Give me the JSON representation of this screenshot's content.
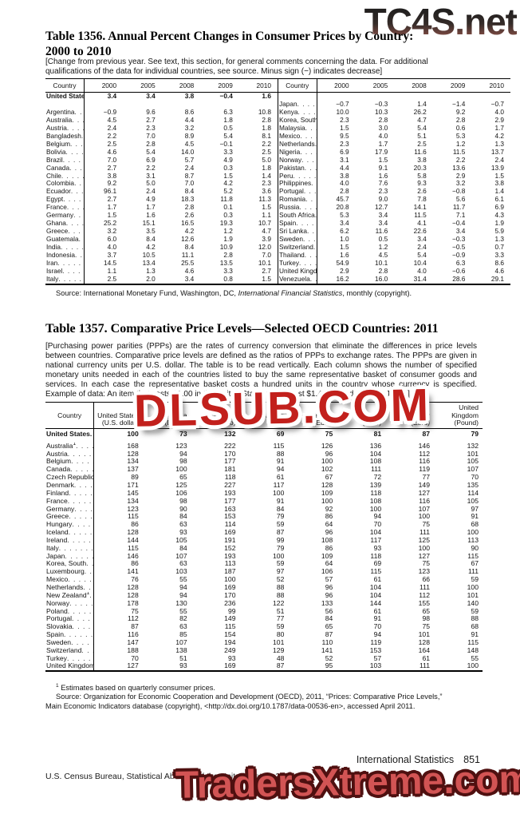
{
  "watermarks": {
    "top": "TC4S.net",
    "middle": "DLSUB.COM",
    "bottom": "TradersXtreme.com"
  },
  "table1356": {
    "title_line1": "Table 1356. Annual Percent Changes in Consumer Prices by Country:",
    "title_line2": "2000 to 2010",
    "note": "[Change from previous year. See text, this section, for general comments concerning the data. For additional qualifications of the data for individual countries, see source. Minus sign (−) indicates decrease]",
    "country_header": "Country",
    "years": [
      "2000",
      "2005",
      "2008",
      "2009",
      "2010"
    ],
    "rows": [
      {
        "lc": "United States",
        "lb": true,
        "lv": [
          "3.4",
          "3.4",
          "3.8",
          "−0.4",
          "1.6"
        ],
        "rc": null,
        "rv": null
      },
      {
        "lc": null,
        "lv": null,
        "rc": "Japan",
        "rv": [
          "−0.7",
          "−0.3",
          "1.4",
          "−1.4",
          "−0.7"
        ]
      },
      {
        "lc": "Argentina",
        "lv": [
          "−0.9",
          "9.6",
          "8.6",
          "6.3",
          "10.8"
        ],
        "rc": "Kenya",
        "rv": [
          "10.0",
          "10.3",
          "26.2",
          "9.2",
          "4.0"
        ]
      },
      {
        "lc": "Australia",
        "lv": [
          "4.5",
          "2.7",
          "4.4",
          "1.8",
          "2.8"
        ],
        "rc": "Korea, South",
        "rv": [
          "2.3",
          "2.8",
          "4.7",
          "2.8",
          "2.9"
        ]
      },
      {
        "lc": "Austria",
        "lv": [
          "2.4",
          "2.3",
          "3.2",
          "0.5",
          "1.8"
        ],
        "rc": "Malaysia",
        "rv": [
          "1.5",
          "3.0",
          "5.4",
          "0.6",
          "1.7"
        ]
      },
      {
        "lc": "Bangladesh",
        "lv": [
          "2.2",
          "7.0",
          "8.9",
          "5.4",
          "8.1"
        ],
        "rc": "Mexico",
        "rv": [
          "9.5",
          "4.0",
          "5.1",
          "5.3",
          "4.2"
        ]
      },
      {
        "lc": "Belgium",
        "lv": [
          "2.5",
          "2.8",
          "4.5",
          "−0.1",
          "2.2"
        ],
        "rc": "Netherlands",
        "rv": [
          "2.3",
          "1.7",
          "2.5",
          "1.2",
          "1.3"
        ]
      },
      {
        "lc": "Bolivia",
        "lv": [
          "4.6",
          "5.4",
          "14.0",
          "3.3",
          "2.5"
        ],
        "rc": "Nigeria",
        "rv": [
          "6.9",
          "17.9",
          "11.6",
          "11.5",
          "13.7"
        ]
      },
      {
        "lc": "Brazil",
        "lv": [
          "7.0",
          "6.9",
          "5.7",
          "4.9",
          "5.0"
        ],
        "rc": "Norway",
        "rv": [
          "3.1",
          "1.5",
          "3.8",
          "2.2",
          "2.4"
        ]
      },
      {
        "lc": "Canada",
        "lv": [
          "2.7",
          "2.2",
          "2.4",
          "0.3",
          "1.8"
        ],
        "rc": "Pakistan",
        "rv": [
          "4.4",
          "9.1",
          "20.3",
          "13.6",
          "13.9"
        ]
      },
      {
        "lc": "Chile",
        "lv": [
          "3.8",
          "3.1",
          "8.7",
          "1.5",
          "1.4"
        ],
        "rc": "Peru",
        "rv": [
          "3.8",
          "1.6",
          "5.8",
          "2.9",
          "1.5"
        ]
      },
      {
        "lc": "Colombia",
        "lv": [
          "9.2",
          "5.0",
          "7.0",
          "4.2",
          "2.3"
        ],
        "rc": "Philippines",
        "rv": [
          "4.0",
          "7.6",
          "9.3",
          "3.2",
          "3.8"
        ]
      },
      {
        "lc": "Ecuador",
        "lv": [
          "96.1",
          "2.4",
          "8.4",
          "5.2",
          "3.6"
        ],
        "rc": "Portugal",
        "rv": [
          "2.8",
          "2.3",
          "2.6",
          "−0.8",
          "1.4"
        ]
      },
      {
        "lc": "Egypt",
        "lv": [
          "2.7",
          "4.9",
          "18.3",
          "11.8",
          "11.3"
        ],
        "rc": "Romania",
        "rv": [
          "45.7",
          "9.0",
          "7.8",
          "5.6",
          "6.1"
        ]
      },
      {
        "lc": "France",
        "lv": [
          "1.7",
          "1.7",
          "2.8",
          "0.1",
          "1.5"
        ],
        "rc": "Russia",
        "rv": [
          "20.8",
          "12.7",
          "14.1",
          "11.7",
          "6.9"
        ]
      },
      {
        "lc": "Germany",
        "lv": [
          "1.5",
          "1.6",
          "2.6",
          "0.3",
          "1.1"
        ],
        "rc": "South Africa",
        "rv": [
          "5.3",
          "3.4",
          "11.5",
          "7.1",
          "4.3"
        ]
      },
      {
        "lc": "Ghana",
        "lv": [
          "25.2",
          "15.1",
          "16.5",
          "19.3",
          "10.7"
        ],
        "rc": "Spain",
        "rv": [
          "3.4",
          "3.4",
          "4.1",
          "−0.4",
          "1.9"
        ]
      },
      {
        "lc": "Greece",
        "lv": [
          "3.2",
          "3.5",
          "4.2",
          "1.2",
          "4.7"
        ],
        "rc": "Sri Lanka",
        "rv": [
          "6.2",
          "11.6",
          "22.6",
          "3.4",
          "5.9"
        ]
      },
      {
        "lc": "Guatemala",
        "lv": [
          "6.0",
          "8.4",
          "12.6",
          "1.9",
          "3.9"
        ],
        "rc": "Sweden",
        "rv": [
          "1.0",
          "0.5",
          "3.4",
          "−0.3",
          "1.3"
        ]
      },
      {
        "lc": "India",
        "lv": [
          "4.0",
          "4.2",
          "8.4",
          "10.9",
          "12.0"
        ],
        "rc": "Switzerland",
        "rv": [
          "1.5",
          "1.2",
          "2.4",
          "−0.5",
          "0.7"
        ]
      },
      {
        "lc": "Indonesia",
        "lv": [
          "3.7",
          "10.5",
          "11.1",
          "2.8",
          "7.0"
        ],
        "rc": "Thailand",
        "rv": [
          "1.6",
          "4.5",
          "5.4",
          "−0.9",
          "3.3"
        ]
      },
      {
        "lc": "Iran",
        "lv": [
          "14.5",
          "13.4",
          "25.5",
          "13.5",
          "10.1"
        ],
        "rc": "Turkey",
        "rv": [
          "54.9",
          "10.1",
          "10.4",
          "6.3",
          "8.6"
        ]
      },
      {
        "lc": "Israel",
        "lv": [
          "1.1",
          "1.3",
          "4.6",
          "3.3",
          "2.7"
        ],
        "rc": "United Kingdom",
        "rv": [
          "2.9",
          "2.8",
          "4.0",
          "−0.6",
          "4.6"
        ]
      },
      {
        "lc": "Italy",
        "lv": [
          "2.5",
          "2.0",
          "3.4",
          "0.8",
          "1.5"
        ],
        "rc": "Venezuela",
        "rv": [
          "16.2",
          "16.0",
          "31.4",
          "28.6",
          "29.1"
        ]
      }
    ],
    "source_prefix": "Source: International Monetary Fund, Washington, DC, ",
    "source_italic": "International Financial Statistics",
    "source_suffix": ", monthly (copyright)."
  },
  "table1357": {
    "title": "Table 1357. Comparative Price Levels—Selected OECD Countries: 2011",
    "note": "[Purchasing power parities (PPPs) are the rates of currency conversion that eliminate the differences in price levels between countries. Comparative price levels are defined as the ratios of PPPs to exchange rates. The PPPs are given in national currency units per U.S. dollar. The table is to be read vertically. Each column shows the number of specified monetary units needed in each of the countries listed to buy the same representative basket of consumer goods and services. In each case the representative basket costs a hundred units in the country whose currency is specified. Example of data: An item that costs $1.00 in the United States would cost $1.46 (U.S. dollars) in Japan]",
    "country_header": "Country",
    "columns": [
      {
        "name": "United States",
        "unit": "(U.S. dollar)"
      },
      {
        "name": "Canada",
        "unit": "(Dollar)"
      },
      {
        "name": "Mexico",
        "unit": "(Peso)"
      },
      {
        "name": "Japan",
        "unit": "(Yen)"
      },
      {
        "name": "France",
        "unit": "(Euro)"
      },
      {
        "name": "Germany",
        "unit": "(Euro)"
      },
      {
        "name": "Italy",
        "unit": "(Euro)"
      },
      {
        "name": "United Kingdom",
        "unit": "(Pound)"
      }
    ],
    "rows": [
      {
        "c": "United States",
        "b": true,
        "v": [
          "100",
          "73",
          "132",
          "69",
          "75",
          "81",
          "87",
          "79"
        ]
      },
      {
        "c": "Australia",
        "sup": "1",
        "v": [
          "168",
          "123",
          "222",
          "115",
          "126",
          "136",
          "146",
          "132"
        ]
      },
      {
        "c": "Austria",
        "v": [
          "128",
          "94",
          "170",
          "88",
          "96",
          "104",
          "112",
          "101"
        ]
      },
      {
        "c": "Belgium",
        "v": [
          "134",
          "98",
          "177",
          "91",
          "100",
          "108",
          "116",
          "105"
        ]
      },
      {
        "c": "Canada",
        "v": [
          "137",
          "100",
          "181",
          "94",
          "102",
          "111",
          "119",
          "107"
        ]
      },
      {
        "c": "Czech Republic",
        "v": [
          "89",
          "65",
          "118",
          "61",
          "67",
          "72",
          "77",
          "70"
        ]
      },
      {
        "c": "Denmark",
        "v": [
          "171",
          "125",
          "227",
          "117",
          "128",
          "139",
          "149",
          "135"
        ]
      },
      {
        "c": "Finland",
        "v": [
          "145",
          "106",
          "193",
          "100",
          "109",
          "118",
          "127",
          "114"
        ]
      },
      {
        "c": "France",
        "v": [
          "134",
          "98",
          "177",
          "91",
          "100",
          "108",
          "116",
          "105"
        ]
      },
      {
        "c": "Germany",
        "v": [
          "123",
          "90",
          "163",
          "84",
          "92",
          "100",
          "107",
          "97"
        ]
      },
      {
        "c": "Greece",
        "v": [
          "115",
          "84",
          "153",
          "79",
          "86",
          "94",
          "100",
          "91"
        ]
      },
      {
        "c": "Hungary",
        "v": [
          "86",
          "63",
          "114",
          "59",
          "64",
          "70",
          "75",
          "68"
        ]
      },
      {
        "c": "Iceland",
        "v": [
          "128",
          "93",
          "169",
          "87",
          "96",
          "104",
          "111",
          "100"
        ]
      },
      {
        "c": "Ireland",
        "v": [
          "144",
          "105",
          "191",
          "99",
          "108",
          "117",
          "125",
          "113"
        ]
      },
      {
        "c": "Italy",
        "v": [
          "115",
          "84",
          "152",
          "79",
          "86",
          "93",
          "100",
          "90"
        ]
      },
      {
        "c": "Japan",
        "v": [
          "146",
          "107",
          "193",
          "100",
          "109",
          "118",
          "127",
          "115"
        ]
      },
      {
        "c": "Korea, South",
        "v": [
          "86",
          "63",
          "113",
          "59",
          "64",
          "69",
          "75",
          "67"
        ]
      },
      {
        "c": "Luxembourg",
        "v": [
          "141",
          "103",
          "187",
          "97",
          "106",
          "115",
          "123",
          "111"
        ]
      },
      {
        "c": "Mexico",
        "v": [
          "76",
          "55",
          "100",
          "52",
          "57",
          "61",
          "66",
          "59"
        ]
      },
      {
        "c": "Netherlands",
        "v": [
          "128",
          "94",
          "169",
          "88",
          "96",
          "104",
          "111",
          "100"
        ]
      },
      {
        "c": "New Zealand",
        "sup": "1",
        "v": [
          "128",
          "94",
          "170",
          "88",
          "96",
          "104",
          "112",
          "101"
        ]
      },
      {
        "c": "Norway",
        "v": [
          "178",
          "130",
          "236",
          "122",
          "133",
          "144",
          "155",
          "140"
        ]
      },
      {
        "c": "Poland",
        "v": [
          "75",
          "55",
          "99",
          "51",
          "56",
          "61",
          "65",
          "59"
        ]
      },
      {
        "c": "Portugal",
        "v": [
          "112",
          "82",
          "149",
          "77",
          "84",
          "91",
          "98",
          "88"
        ]
      },
      {
        "c": "Slovakia",
        "v": [
          "87",
          "63",
          "115",
          "59",
          "65",
          "70",
          "75",
          "68"
        ]
      },
      {
        "c": "Spain",
        "v": [
          "116",
          "85",
          "154",
          "80",
          "87",
          "94",
          "101",
          "91"
        ]
      },
      {
        "c": "Sweden",
        "v": [
          "147",
          "107",
          "194",
          "101",
          "110",
          "119",
          "128",
          "115"
        ]
      },
      {
        "c": "Switzerland",
        "v": [
          "188",
          "138",
          "249",
          "129",
          "141",
          "153",
          "164",
          "148"
        ]
      },
      {
        "c": "Turkey",
        "v": [
          "70",
          "51",
          "93",
          "48",
          "52",
          "57",
          "61",
          "55"
        ]
      },
      {
        "c": "United Kingdom",
        "v": [
          "127",
          "93",
          "169",
          "87",
          "95",
          "103",
          "111",
          "100"
        ]
      }
    ],
    "footnote_sup": "1",
    "footnote_text": " Estimates based on quarterly consumer prices.",
    "source_line1": "Source: Organization for Economic Cooperation and Development (OECD), 2011, “Prices: Comparative Price Levels,”",
    "source_line2": "Main Economic Indicators database (copyright), <http://dx.doi.org/10.1787/data-00536-en>, accessed April 2011."
  },
  "footer": {
    "section": "International Statistics",
    "page": "851",
    "census_line": "U.S. Census Bureau, Statistical Abstract of the United States: 2012"
  }
}
